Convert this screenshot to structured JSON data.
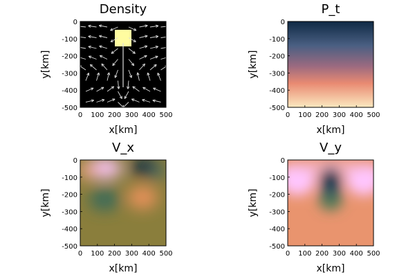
{
  "chart_data": [
    {
      "type": "heatmap",
      "title": "Density",
      "xlabel": "x[km]",
      "ylabel": "y[km]",
      "xlim": [
        0,
        500
      ],
      "ylim": [
        -500,
        0
      ],
      "xticks": [
        "0",
        "100",
        "200",
        "300",
        "400",
        "500"
      ],
      "yticks": [
        "0",
        "-100",
        "-200",
        "-300",
        "-400",
        "-500"
      ],
      "colorscheme": "binary",
      "colors": [
        "#000000",
        "#fffca0"
      ],
      "overlay": "velocity-quiver",
      "block": {
        "x": [
          200,
          300
        ],
        "y": [
          -150,
          -50
        ]
      }
    },
    {
      "type": "heatmap",
      "title": "P_t",
      "xlabel": "x[km]",
      "ylabel": "y[km]",
      "xlim": [
        0,
        500
      ],
      "ylim": [
        -500,
        0
      ],
      "xticks": [
        "0",
        "100",
        "200",
        "300",
        "400",
        "500"
      ],
      "yticks": [
        "0",
        "-100",
        "-200",
        "-300",
        "-400",
        "-500"
      ],
      "colorscheme": "batlow-like",
      "colors": [
        "#0f2a45",
        "#4a5f82",
        "#9b6a80",
        "#e98a72",
        "#fbe9c0"
      ]
    },
    {
      "type": "heatmap",
      "title": "V_x",
      "xlabel": "x[km]",
      "ylabel": "y[km]",
      "xlim": [
        0,
        500
      ],
      "ylim": [
        -500,
        0
      ],
      "xticks": [
        "0",
        "100",
        "200",
        "300",
        "400",
        "500"
      ],
      "yticks": [
        "0",
        "-100",
        "-200",
        "-300",
        "-400",
        "-500"
      ],
      "colorscheme": "batlow-like",
      "background": "#8a7e3c",
      "features": [
        {
          "x": 150,
          "y": -40,
          "color": "#ffc6ff"
        },
        {
          "x": 370,
          "y": -40,
          "color": "#0f2a45"
        },
        {
          "x": 150,
          "y": -230,
          "color": "#3a6a5a"
        },
        {
          "x": 360,
          "y": -220,
          "color": "#e6915a"
        }
      ]
    },
    {
      "type": "heatmap",
      "title": "V_y",
      "xlabel": "x[km]",
      "ylabel": "y[km]",
      "xlim": [
        0,
        500
      ],
      "ylim": [
        -500,
        0
      ],
      "xticks": [
        "0",
        "100",
        "200",
        "300",
        "400",
        "500"
      ],
      "yticks": [
        "0",
        "-100",
        "-200",
        "-300",
        "-400",
        "-500"
      ],
      "colorscheme": "batlow-like",
      "background": "#e9946e",
      "features": [
        {
          "x": 250,
          "y": -110,
          "color": "#0f2a45"
        },
        {
          "x": 250,
          "y": -200,
          "color": "#4f7a55"
        },
        {
          "x": 60,
          "y": -100,
          "color": "#ffc6ff"
        },
        {
          "x": 440,
          "y": -100,
          "color": "#ffc6ff"
        }
      ]
    }
  ]
}
